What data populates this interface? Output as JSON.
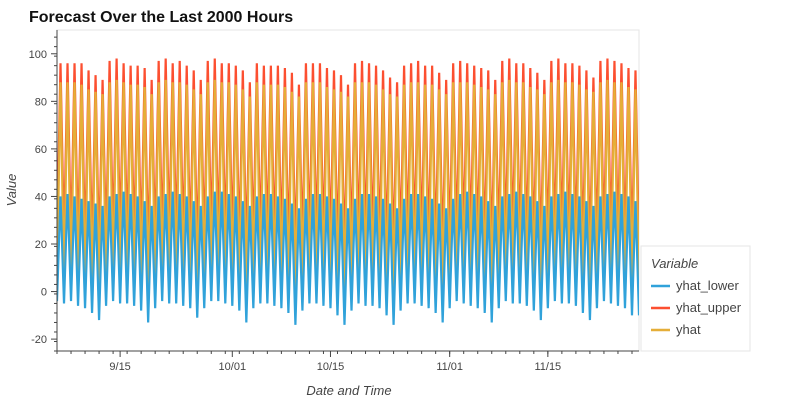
{
  "chart_data": {
    "type": "line",
    "title": "Forecast Over the Last 2000 Hours",
    "xlabel": "Date and Time",
    "ylabel": "Value",
    "x_range": [
      "2024-09-06",
      "2024-11-28"
    ],
    "ylim": [
      -25,
      110
    ],
    "x_ticks": [
      {
        "date": "2024-09-15",
        "label": "9/15"
      },
      {
        "date": "2024-10-01",
        "label": "10/01"
      },
      {
        "date": "2024-10-15",
        "label": "10/15"
      },
      {
        "date": "2024-11-01",
        "label": "11/01"
      },
      {
        "date": "2024-11-15",
        "label": "11/15"
      }
    ],
    "y_ticks": [
      -20,
      0,
      20,
      40,
      60,
      80,
      100
    ],
    "grid": false,
    "legend": {
      "title": "Variable",
      "placement": "right-bottom",
      "entries": [
        "yhat_lower",
        "yhat_upper",
        "yhat"
      ]
    },
    "series": [
      {
        "name": "yhat_lower",
        "color": "#30a2da",
        "daily_minima": [
          -4,
          -5,
          -4,
          -6,
          -7,
          -9,
          -12,
          -6,
          -4,
          -5,
          -5,
          -6,
          -8,
          -13,
          -7,
          -4,
          -5,
          -5,
          -6,
          -7,
          -11,
          -7,
          -4,
          -4,
          -5,
          -6,
          -8,
          -13,
          -7,
          -5,
          -5,
          -6,
          -7,
          -9,
          -14,
          -8,
          -5,
          -5,
          -6,
          -7,
          -10,
          -14,
          -8,
          -5,
          -6,
          -6,
          -7,
          -10,
          -14,
          -8,
          -5,
          -5,
          -6,
          -7,
          -9,
          -13,
          -7,
          -4,
          -5,
          -6,
          -7,
          -9,
          -13,
          -7,
          -4,
          -5,
          -5,
          -6,
          -8,
          -12,
          -7,
          -4,
          -5,
          -5,
          -6,
          -9,
          -12,
          -7,
          -4,
          -5,
          -6,
          -7,
          -10
        ],
        "daily_maxima": [
          40,
          41,
          40,
          39,
          38,
          37,
          36,
          40,
          41,
          42,
          41,
          40,
          38,
          36,
          40,
          41,
          42,
          41,
          40,
          38,
          36,
          40,
          42,
          42,
          41,
          40,
          38,
          36,
          40,
          41,
          41,
          40,
          39,
          37,
          35,
          39,
          41,
          41,
          40,
          39,
          37,
          35,
          39,
          41,
          41,
          40,
          39,
          37,
          35,
          39,
          41,
          41,
          40,
          39,
          37,
          35,
          39,
          41,
          42,
          41,
          40,
          38,
          36,
          40,
          41,
          42,
          41,
          40,
          38,
          36,
          40,
          41,
          42,
          41,
          40,
          38,
          36,
          40,
          41,
          42,
          41,
          40,
          38
        ]
      },
      {
        "name": "yhat_upper",
        "color": "#fc4f30",
        "daily_minima": [
          20,
          21,
          20,
          19,
          18,
          17,
          16,
          20,
          21,
          22,
          21,
          20,
          18,
          16,
          20,
          21,
          22,
          21,
          20,
          18,
          16,
          20,
          22,
          22,
          21,
          20,
          18,
          16,
          20,
          21,
          21,
          20,
          19,
          17,
          15,
          19,
          21,
          21,
          20,
          19,
          17,
          15,
          19,
          21,
          21,
          20,
          19,
          17,
          15,
          19,
          21,
          21,
          20,
          19,
          17,
          15,
          19,
          21,
          22,
          21,
          20,
          18,
          16,
          20,
          21,
          22,
          21,
          20,
          18,
          16,
          20,
          21,
          22,
          21,
          20,
          18,
          16,
          20,
          21,
          22,
          21,
          20,
          18
        ],
        "daily_maxima": [
          96,
          96,
          96,
          96,
          93,
          91,
          89,
          97,
          98,
          96,
          95,
          95,
          94,
          89,
          97,
          98,
          96,
          97,
          95,
          93,
          89,
          97,
          98,
          96,
          96,
          95,
          93,
          88,
          96,
          95,
          95,
          95,
          94,
          92,
          87,
          96,
          96,
          96,
          94,
          93,
          91,
          87,
          96,
          97,
          96,
          95,
          93,
          90,
          88,
          95,
          96,
          97,
          95,
          95,
          92,
          89,
          96,
          97,
          96,
          95,
          94,
          93,
          89,
          97,
          98,
          96,
          96,
          94,
          92,
          89,
          97,
          98,
          96,
          96,
          95,
          93,
          90,
          97,
          98,
          97,
          96,
          94,
          93
        ]
      },
      {
        "name": "yhat",
        "color": "#e5ae38",
        "daily_minima": [
          4,
          4,
          4,
          3,
          2,
          1,
          0,
          4,
          4,
          5,
          4,
          3,
          2,
          0,
          4,
          4,
          5,
          4,
          3,
          2,
          0,
          4,
          5,
          5,
          4,
          3,
          2,
          0,
          4,
          4,
          4,
          3,
          2,
          1,
          -1,
          3,
          4,
          4,
          3,
          2,
          1,
          -1,
          3,
          4,
          4,
          3,
          2,
          1,
          -1,
          3,
          4,
          4,
          3,
          2,
          1,
          -1,
          3,
          4,
          5,
          4,
          3,
          2,
          0,
          4,
          4,
          5,
          4,
          3,
          2,
          0,
          4,
          4,
          5,
          4,
          3,
          2,
          0,
          4,
          4,
          5,
          4,
          3,
          2
        ],
        "daily_maxima": [
          88,
          88,
          88,
          87,
          85,
          84,
          83,
          88,
          89,
          88,
          87,
          87,
          86,
          83,
          88,
          89,
          88,
          88,
          87,
          85,
          83,
          88,
          89,
          88,
          88,
          87,
          85,
          82,
          88,
          87,
          87,
          87,
          86,
          84,
          82,
          88,
          88,
          88,
          86,
          85,
          84,
          82,
          88,
          88,
          88,
          87,
          85,
          83,
          82,
          87,
          88,
          88,
          87,
          87,
          85,
          83,
          88,
          88,
          88,
          87,
          86,
          85,
          83,
          88,
          89,
          88,
          88,
          86,
          85,
          83,
          88,
          89,
          88,
          88,
          87,
          85,
          84,
          88,
          89,
          88,
          88,
          86,
          85
        ]
      }
    ]
  }
}
